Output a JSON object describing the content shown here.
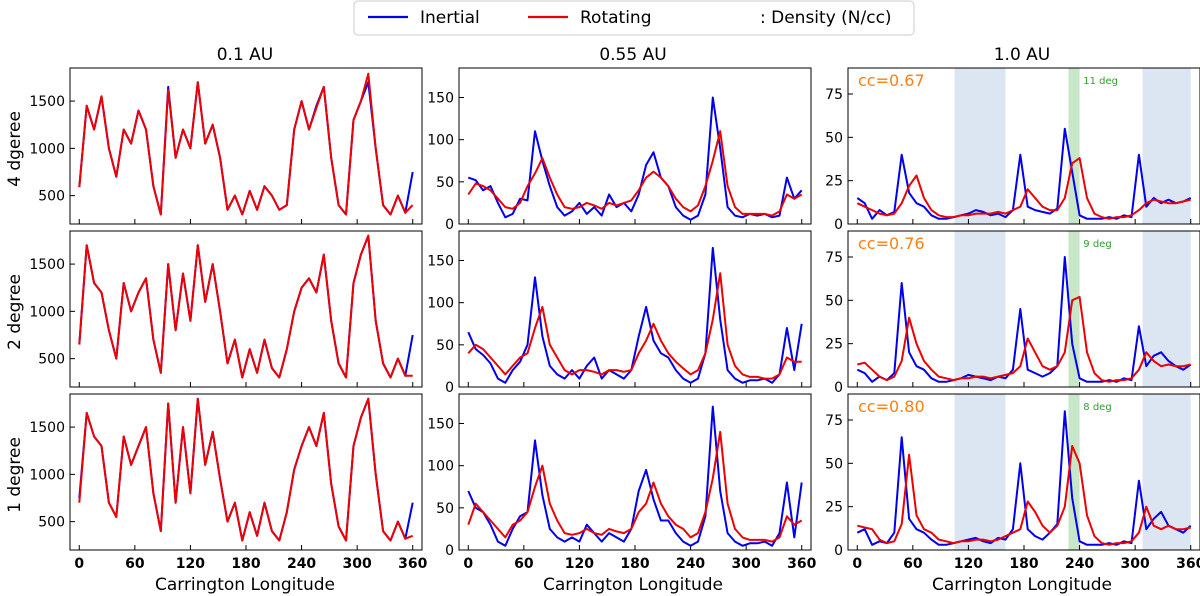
{
  "legend": {
    "entries": [
      {
        "label": "Inertial",
        "color": "#0000ee"
      },
      {
        "label": "Rotating",
        "color": "#ee0000"
      }
    ],
    "note": ": Density (N/cc)"
  },
  "columns": [
    {
      "title": "0.1 AU",
      "ylim": [
        200,
        1850
      ],
      "yticks": [
        500,
        1000,
        1500
      ]
    },
    {
      "title": "0.55 AU",
      "ylim": [
        0,
        185
      ],
      "yticks": [
        0,
        50,
        100,
        150
      ]
    },
    {
      "title": "1.0 AU",
      "ylim": [
        0,
        90
      ],
      "yticks": [
        0,
        25,
        50,
        75
      ]
    }
  ],
  "rows": [
    {
      "label": "4 dgeree",
      "cc": "cc=0.67",
      "lag": "11 deg"
    },
    {
      "label": "2 degree",
      "cc": "cc=0.76",
      "lag": "9 deg"
    },
    {
      "label": "1 degree",
      "cc": "cc=0.80",
      "lag": "8 deg"
    }
  ],
  "xaxis": {
    "label": "Carrington Longitude",
    "xlim": [
      -10,
      370
    ],
    "ticks": [
      0,
      60,
      120,
      180,
      240,
      300,
      360
    ]
  },
  "shading": {
    "blue_bands": [
      [
        105,
        160
      ],
      [
        308,
        360
      ]
    ],
    "blue_color": "#dce6f2",
    "green_color": "#c8e6c8",
    "cc_color": "#ff7f0e",
    "lag_color": "#2ca02c"
  },
  "chart_data": {
    "type": "line",
    "x": [
      0,
      8,
      16,
      24,
      32,
      40,
      48,
      56,
      64,
      72,
      80,
      88,
      96,
      104,
      112,
      120,
      128,
      136,
      144,
      152,
      160,
      168,
      176,
      184,
      192,
      200,
      208,
      216,
      224,
      232,
      240,
      248,
      256,
      264,
      272,
      280,
      288,
      296,
      304,
      312,
      320,
      328,
      336,
      344,
      352,
      360
    ],
    "panels": [
      {
        "row": "4 dgeree",
        "column": "0.1 AU",
        "series": [
          {
            "name": "Inertial",
            "values": [
              590,
              1450,
              1200,
              1550,
              1000,
              700,
              1200,
              1050,
              1400,
              1200,
              600,
              300,
              1650,
              900,
              1200,
              1000,
              1700,
              1050,
              1250,
              900,
              350,
              500,
              300,
              550,
              350,
              600,
              500,
              350,
              400,
              1200,
              1500,
              1200,
              1450,
              1650,
              900,
              400,
              300,
              1300,
              1500,
              1700,
              1000,
              400,
              300,
              500,
              320,
              750
            ]
          },
          {
            "name": "Rotating",
            "values": [
              590,
              1450,
              1200,
              1550,
              1000,
              700,
              1200,
              1050,
              1400,
              1200,
              600,
              300,
              1620,
              900,
              1200,
              1000,
              1700,
              1050,
              1250,
              900,
              350,
              500,
              300,
              550,
              350,
              600,
              500,
              350,
              400,
              1200,
              1500,
              1200,
              1430,
              1650,
              900,
              400,
              300,
              1300,
              1500,
              1790,
              1000,
              400,
              300,
              500,
              320,
              400
            ]
          }
        ]
      },
      {
        "row": "4 dgeree",
        "column": "0.55 AU",
        "series": [
          {
            "name": "Inertial",
            "values": [
              55,
              52,
              40,
              45,
              25,
              8,
              12,
              30,
              28,
              110,
              75,
              45,
              20,
              10,
              15,
              25,
              12,
              20,
              10,
              35,
              20,
              25,
              15,
              35,
              70,
              85,
              55,
              45,
              20,
              10,
              5,
              10,
              35,
              150,
              90,
              20,
              10,
              8,
              12,
              10,
              12,
              8,
              10,
              55,
              30,
              40
            ]
          },
          {
            "name": "Rotating",
            "values": [
              35,
              48,
              45,
              40,
              30,
              20,
              18,
              25,
              45,
              60,
              78,
              55,
              35,
              20,
              18,
              20,
              25,
              22,
              18,
              25,
              22,
              25,
              28,
              40,
              55,
              62,
              55,
              45,
              30,
              20,
              15,
              22,
              45,
              75,
              110,
              45,
              20,
              12,
              12,
              12,
              12,
              10,
              15,
              35,
              30,
              35
            ]
          }
        ]
      },
      {
        "row": "4 dgeree",
        "column": "1.0 AU",
        "series": [
          {
            "name": "Inertial",
            "values": [
              15,
              12,
              3,
              8,
              5,
              7,
              40,
              18,
              12,
              10,
              5,
              3,
              3,
              4,
              5,
              6,
              8,
              7,
              5,
              6,
              4,
              8,
              40,
              10,
              8,
              7,
              6,
              9,
              55,
              30,
              5,
              3,
              3,
              3,
              4,
              3,
              5,
              4,
              40,
              10,
              15,
              12,
              14,
              12,
              13,
              15
            ]
          },
          {
            "name": "Rotating",
            "values": [
              12,
              10,
              8,
              6,
              5,
              6,
              12,
              22,
              28,
              15,
              8,
              5,
              4,
              4,
              5,
              5,
              6,
              6,
              6,
              7,
              6,
              8,
              10,
              20,
              15,
              10,
              8,
              8,
              15,
              35,
              38,
              15,
              6,
              4,
              3,
              4,
              4,
              5,
              8,
              12,
              14,
              13,
              12,
              12,
              13,
              14
            ]
          }
        ]
      },
      {
        "row": "2 degree",
        "column": "0.1 AU",
        "series": [
          {
            "name": "Inertial",
            "values": [
              650,
              1700,
              1300,
              1200,
              800,
              500,
              1300,
              1000,
              1200,
              1350,
              700,
              350,
              1500,
              800,
              1400,
              900,
              1700,
              1100,
              1500,
              1000,
              450,
              700,
              300,
              600,
              350,
              700,
              400,
              300,
              600,
              1000,
              1250,
              1350,
              1200,
              1600,
              900,
              450,
              300,
              1300,
              1600,
              1800,
              900,
              450,
              300,
              500,
              320,
              750
            ]
          },
          {
            "name": "Rotating",
            "values": [
              650,
              1700,
              1300,
              1200,
              800,
              500,
              1300,
              1000,
              1200,
              1350,
              700,
              350,
              1500,
              800,
              1400,
              900,
              1700,
              1100,
              1500,
              1000,
              450,
              700,
              300,
              600,
              350,
              700,
              400,
              300,
              600,
              1000,
              1250,
              1350,
              1200,
              1600,
              900,
              450,
              300,
              1300,
              1600,
              1800,
              900,
              450,
              300,
              500,
              320,
              320
            ]
          }
        ]
      },
      {
        "row": "2 degree",
        "column": "0.55 AU",
        "series": [
          {
            "name": "Inertial",
            "values": [
              65,
              45,
              38,
              28,
              10,
              5,
              20,
              30,
              50,
              130,
              60,
              25,
              15,
              10,
              20,
              10,
              25,
              35,
              10,
              20,
              15,
              10,
              20,
              60,
              95,
              55,
              40,
              35,
              20,
              10,
              5,
              10,
              40,
              165,
              80,
              20,
              10,
              5,
              8,
              8,
              10,
              5,
              15,
              70,
              20,
              75
            ]
          },
          {
            "name": "Rotating",
            "values": [
              40,
              50,
              45,
              35,
              25,
              15,
              25,
              35,
              40,
              70,
              95,
              50,
              35,
              20,
              15,
              20,
              20,
              18,
              15,
              20,
              20,
              18,
              20,
              40,
              55,
              75,
              55,
              40,
              30,
              22,
              15,
              20,
              40,
              80,
              135,
              50,
              25,
              15,
              12,
              12,
              10,
              10,
              15,
              35,
              30,
              30
            ]
          }
        ]
      },
      {
        "row": "2 degree",
        "column": "1.0 AU",
        "series": [
          {
            "name": "Inertial",
            "values": [
              10,
              8,
              3,
              6,
              4,
              8,
              60,
              20,
              12,
              10,
              5,
              3,
              3,
              4,
              5,
              7,
              6,
              5,
              4,
              6,
              5,
              10,
              45,
              10,
              8,
              6,
              8,
              12,
              75,
              25,
              5,
              3,
              3,
              3,
              4,
              3,
              5,
              4,
              35,
              12,
              18,
              20,
              15,
              12,
              10,
              13
            ]
          },
          {
            "name": "Rotating",
            "values": [
              13,
              14,
              10,
              6,
              4,
              6,
              15,
              40,
              25,
              15,
              10,
              6,
              5,
              4,
              5,
              5,
              6,
              6,
              5,
              6,
              7,
              8,
              12,
              28,
              20,
              12,
              10,
              12,
              20,
              50,
              52,
              20,
              8,
              4,
              3,
              4,
              4,
              5,
              10,
              20,
              15,
              12,
              13,
              12,
              12,
              13
            ]
          }
        ]
      },
      {
        "row": "1 degree",
        "column": "0.1 AU",
        "series": [
          {
            "name": "Inertial",
            "values": [
              750,
              1650,
              1400,
              1300,
              700,
              550,
              1400,
              1100,
              1300,
              1500,
              800,
              400,
              1750,
              700,
              1500,
              800,
              1800,
              1100,
              1450,
              950,
              500,
              700,
              300,
              600,
              350,
              700,
              400,
              300,
              600,
              1050,
              1300,
              1500,
              1300,
              1650,
              900,
              450,
              300,
              1300,
              1600,
              1800,
              1000,
              400,
              300,
              500,
              320,
              700
            ]
          },
          {
            "name": "Rotating",
            "values": [
              700,
              1650,
              1400,
              1300,
              700,
              550,
              1400,
              1100,
              1300,
              1500,
              800,
              400,
              1750,
              700,
              1500,
              800,
              1800,
              1100,
              1450,
              950,
              500,
              700,
              300,
              600,
              350,
              700,
              400,
              300,
              600,
              1050,
              1300,
              1500,
              1300,
              1650,
              900,
              450,
              300,
              1300,
              1600,
              1800,
              1000,
              400,
              300,
              500,
              320,
              350
            ]
          }
        ]
      },
      {
        "row": "1 degree",
        "column": "0.55 AU",
        "series": [
          {
            "name": "Inertial",
            "values": [
              70,
              50,
              45,
              30,
              10,
              5,
              25,
              40,
              45,
              130,
              65,
              25,
              15,
              10,
              15,
              10,
              30,
              20,
              10,
              20,
              15,
              10,
              25,
              70,
              95,
              60,
              35,
              35,
              20,
              10,
              5,
              10,
              40,
              170,
              70,
              20,
              10,
              5,
              8,
              8,
              10,
              5,
              20,
              80,
              15,
              80
            ]
          },
          {
            "name": "Rotating",
            "values": [
              30,
              55,
              45,
              35,
              25,
              15,
              30,
              35,
              45,
              75,
              100,
              55,
              35,
              20,
              18,
              20,
              25,
              20,
              18,
              25,
              22,
              20,
              25,
              45,
              55,
              80,
              55,
              40,
              30,
              25,
              15,
              20,
              45,
              85,
              140,
              55,
              25,
              15,
              12,
              12,
              12,
              10,
              15,
              40,
              30,
              35
            ]
          }
        ]
      },
      {
        "row": "1 degree",
        "column": "1.0 AU",
        "series": [
          {
            "name": "Inertial",
            "values": [
              10,
              12,
              3,
              5,
              4,
              10,
              65,
              18,
              12,
              10,
              6,
              3,
              3,
              4,
              5,
              6,
              7,
              5,
              4,
              7,
              6,
              12,
              50,
              12,
              8,
              6,
              10,
              15,
              80,
              30,
              5,
              3,
              3,
              3,
              4,
              3,
              5,
              4,
              40,
              12,
              18,
              22,
              14,
              12,
              10,
              14
            ]
          },
          {
            "name": "Rotating",
            "values": [
              14,
              13,
              12,
              6,
              4,
              5,
              15,
              55,
              20,
              12,
              10,
              6,
              5,
              4,
              5,
              5,
              6,
              6,
              5,
              6,
              8,
              10,
              12,
              28,
              22,
              14,
              10,
              14,
              25,
              60,
              50,
              20,
              8,
              4,
              3,
              4,
              4,
              5,
              10,
              25,
              14,
              12,
              14,
              12,
              12,
              13
            ]
          }
        ]
      }
    ]
  }
}
